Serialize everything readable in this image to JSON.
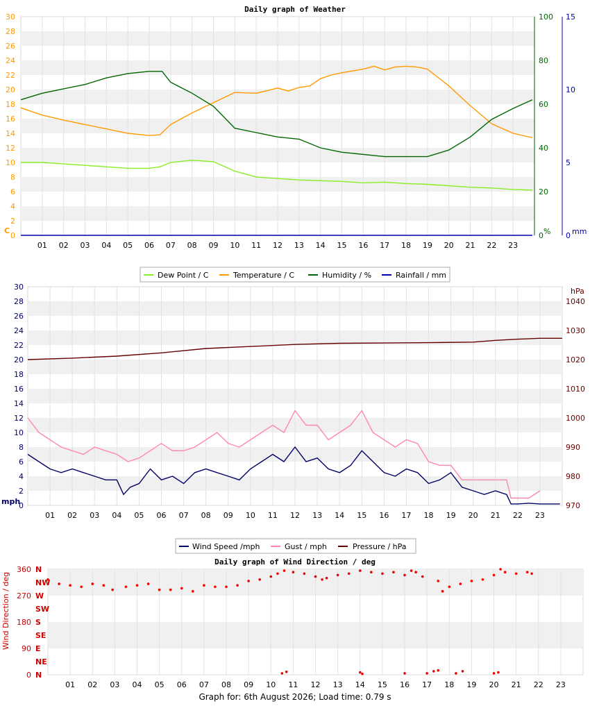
{
  "footer_text": "Graph for: 6th August 2026; Load time: 0.79 s",
  "chart_data": [
    {
      "type": "line",
      "title": "Daily graph of Weather",
      "x_ticks": [
        "01",
        "02",
        "03",
        "04",
        "05",
        "06",
        "07",
        "08",
        "09",
        "10",
        "11",
        "12",
        "13",
        "14",
        "15",
        "16",
        "17",
        "18",
        "19",
        "20",
        "21",
        "22",
        "23"
      ],
      "x_range": [
        0,
        24
      ],
      "axes": {
        "left": {
          "label": "C",
          "range": [
            0,
            30
          ],
          "ticks": [
            0,
            2,
            4,
            6,
            8,
            10,
            12,
            14,
            16,
            18,
            20,
            22,
            24,
            26,
            28,
            30
          ],
          "color": "#ff9900"
        },
        "right1": {
          "label": "%",
          "range": [
            0,
            100
          ],
          "ticks": [
            0,
            20,
            40,
            60,
            80,
            100
          ],
          "color": "#006600"
        },
        "right2": {
          "label": "mm",
          "range": [
            0,
            15
          ],
          "ticks": [
            0,
            5,
            10,
            15
          ],
          "color": "#0000aa"
        }
      },
      "grid": "horizontal bands",
      "legend_position": "bottom",
      "series": [
        {
          "name": "Dew Point / C",
          "axis": "left",
          "color": "#88ee22",
          "x": [
            0,
            1,
            2,
            3,
            4,
            5,
            6,
            6.5,
            7,
            8,
            9,
            10,
            11,
            12,
            13,
            14,
            15,
            16,
            17,
            18,
            19,
            20,
            21,
            22,
            23,
            23.9
          ],
          "y": [
            10,
            10,
            9.8,
            9.6,
            9.4,
            9.2,
            9.2,
            9.4,
            10,
            10.3,
            10.1,
            8.8,
            8,
            7.8,
            7.6,
            7.5,
            7.4,
            7.2,
            7.3,
            7.1,
            7,
            6.8,
            6.6,
            6.5,
            6.3,
            6.2
          ]
        },
        {
          "name": "Temperature / C",
          "axis": "left",
          "color": "#ff9900",
          "x": [
            0,
            1,
            2,
            3,
            4,
            5,
            6,
            6.5,
            7,
            8,
            9,
            10,
            11,
            12,
            12.5,
            13,
            13.5,
            14,
            14.5,
            15,
            16,
            16.5,
            17,
            17.5,
            18,
            18.5,
            19,
            20,
            21,
            22,
            23,
            23.9
          ],
          "y": [
            17.5,
            16.5,
            15.8,
            15.2,
            14.6,
            14,
            13.7,
            13.8,
            15.2,
            16.8,
            18.2,
            19.6,
            19.5,
            20.2,
            19.8,
            20.3,
            20.5,
            21.5,
            22,
            22.3,
            22.8,
            23.2,
            22.7,
            23.1,
            23.2,
            23.1,
            22.8,
            20.5,
            17.8,
            15.3,
            14,
            13.4
          ]
        },
        {
          "name": "Humidity / %",
          "axis": "right1",
          "color": "#006600",
          "x": [
            0,
            1,
            2,
            3,
            4,
            5,
            6,
            6.6,
            7,
            8,
            9,
            9.5,
            10,
            11,
            12,
            13,
            14,
            15,
            16,
            17,
            18,
            19,
            20,
            21,
            22,
            23,
            23.9
          ],
          "y": [
            62,
            65,
            67,
            69,
            72,
            74,
            75,
            75,
            70,
            65,
            59,
            54,
            49,
            47,
            45,
            44,
            40,
            38,
            37,
            36,
            36,
            36,
            39,
            45,
            53,
            58,
            62
          ]
        },
        {
          "name": "Rainfall / mm",
          "axis": "right2",
          "color": "#0000aa",
          "x": [
            0,
            23.9
          ],
          "y": [
            0,
            0
          ]
        }
      ]
    },
    {
      "type": "line",
      "title": "",
      "x_ticks": [
        "01",
        "02",
        "03",
        "04",
        "05",
        "06",
        "07",
        "08",
        "09",
        "10",
        "11",
        "12",
        "13",
        "14",
        "15",
        "16",
        "17",
        "18",
        "19",
        "20",
        "21",
        "22",
        "23"
      ],
      "x_range": [
        0,
        24
      ],
      "axes": {
        "left": {
          "label": "mph",
          "range": [
            0,
            30
          ],
          "ticks": [
            0,
            2,
            4,
            6,
            8,
            10,
            12,
            14,
            16,
            18,
            20,
            22,
            24,
            26,
            28,
            30
          ],
          "color": "#000066"
        },
        "right": {
          "label": "hPa",
          "range": [
            970,
            1045
          ],
          "ticks": [
            970,
            980,
            990,
            1000,
            1010,
            1020,
            1030,
            1040
          ],
          "color": "#660000"
        }
      },
      "grid": "horizontal bands",
      "legend_position": "bottom",
      "series": [
        {
          "name": "Wind Speed /mph",
          "axis": "left",
          "color": "#000066",
          "x": [
            0,
            0.5,
            1,
            1.5,
            2,
            2.5,
            3,
            3.5,
            4,
            4.3,
            4.6,
            5,
            5.5,
            6,
            6.5,
            7,
            7.5,
            8,
            8.5,
            9,
            9.5,
            10,
            10.5,
            11,
            11.5,
            12,
            12.5,
            13,
            13.5,
            14,
            14.5,
            15,
            15.5,
            16,
            16.5,
            17,
            17.5,
            18,
            18.5,
            19,
            19.5,
            20,
            20.5,
            21,
            21.5,
            21.7,
            22,
            22.5,
            23,
            23.9
          ],
          "y": [
            7,
            6,
            5,
            4.5,
            5,
            4.5,
            4,
            3.5,
            3.5,
            1.5,
            2.5,
            3,
            5,
            3.5,
            4,
            3,
            4.5,
            5,
            4.5,
            4,
            3.5,
            5,
            6,
            7,
            6,
            8,
            6,
            6.5,
            5,
            4.5,
            5.5,
            7.5,
            6,
            4.5,
            4,
            5,
            4.5,
            3,
            3.5,
            4.5,
            2.5,
            2,
            1.5,
            2,
            1.5,
            0.2,
            0.2,
            0.3,
            0.2,
            0.2
          ]
        },
        {
          "name": "Gust / mph",
          "axis": "left",
          "color": "#ff88aa",
          "x": [
            0,
            0.5,
            1,
            1.5,
            2,
            2.5,
            3,
            3.5,
            4,
            4.5,
            5,
            5.5,
            6,
            6.5,
            7,
            7.5,
            8,
            8.5,
            9,
            9.5,
            10,
            10.5,
            11,
            11.5,
            12,
            12.5,
            13,
            13.5,
            14,
            14.5,
            15,
            15.5,
            16,
            16.5,
            17,
            17.5,
            18,
            18.5,
            19,
            19.5,
            20,
            20.5,
            21,
            21.5,
            21.7,
            22,
            22.5,
            23
          ],
          "y": [
            12,
            10,
            9,
            8,
            7.5,
            7,
            8,
            7.5,
            7,
            6,
            6.5,
            7.5,
            8.5,
            7.5,
            7.5,
            8,
            9,
            10,
            8.5,
            8,
            9,
            10,
            11,
            10,
            13,
            11,
            11,
            9,
            10,
            11,
            13,
            10,
            9,
            8,
            9,
            8.5,
            6,
            5.5,
            5.5,
            3.5,
            3.5,
            3.5,
            3.5,
            3.5,
            1,
            1,
            1,
            2
          ]
        },
        {
          "name": "Pressure / hPa",
          "axis": "right",
          "color": "#660000",
          "x": [
            0,
            2,
            4,
            6,
            8,
            10,
            12,
            14,
            16,
            18,
            20,
            21,
            22,
            23,
            24
          ],
          "y": [
            1020,
            1020.5,
            1021.2,
            1022.3,
            1023.8,
            1024.5,
            1025.2,
            1025.6,
            1025.7,
            1025.8,
            1026,
            1026.6,
            1027,
            1027.3,
            1027.3
          ]
        }
      ]
    },
    {
      "type": "scatter",
      "title": "Daily graph of Wind Direction / deg",
      "x_ticks": [
        "01",
        "02",
        "03",
        "04",
        "05",
        "06",
        "07",
        "08",
        "09",
        "10",
        "11",
        "12",
        "13",
        "14",
        "15",
        "16",
        "17",
        "18",
        "19",
        "20",
        "21",
        "22",
        "23"
      ],
      "x_range": [
        0,
        24
      ],
      "ylabel": "Wind Direction / deg",
      "y_range": [
        0,
        360
      ],
      "y_ticks": [
        0,
        90,
        180,
        270,
        360
      ],
      "compass_labels": [
        "N",
        "NE",
        "E",
        "SE",
        "S",
        "SW",
        "W",
        "NW",
        "N"
      ],
      "grid": "horizontal bands",
      "series": [
        {
          "name": "",
          "color": "#ee0000",
          "x": [
            0,
            0.5,
            1,
            1.5,
            2,
            2.5,
            2.9,
            3.5,
            4,
            4.5,
            5,
            5.5,
            6,
            6.5,
            7,
            7.5,
            8,
            8.5,
            9,
            9.5,
            10,
            10.3,
            10.6,
            11,
            11.5,
            12,
            12.3,
            12.5,
            13,
            13.5,
            14,
            14.5,
            15,
            15.5,
            16,
            16.3,
            16.5,
            16.8,
            17.5,
            17.7,
            18,
            18.5,
            19,
            19.5,
            20,
            20.3,
            20.5,
            21,
            21.5,
            21.7
          ],
          "y": [
            325,
            310,
            305,
            300,
            310,
            305,
            290,
            300,
            305,
            310,
            290,
            290,
            295,
            285,
            305,
            300,
            300,
            305,
            320,
            325,
            335,
            345,
            355,
            350,
            345,
            335,
            325,
            330,
            340,
            345,
            355,
            350,
            345,
            350,
            340,
            355,
            350,
            335,
            320,
            285,
            300,
            310,
            320,
            325,
            340,
            360,
            350,
            345,
            350,
            345
          ]
        },
        {
          "name": "",
          "color": "#ee0000",
          "x": [
            10.5,
            10.7,
            14,
            14.1,
            16,
            17,
            17.3,
            17.5,
            18.3,
            18.6,
            20,
            20.2
          ],
          "y": [
            5,
            10,
            8,
            3,
            5,
            5,
            12,
            15,
            5,
            12,
            5,
            8
          ]
        }
      ]
    }
  ]
}
